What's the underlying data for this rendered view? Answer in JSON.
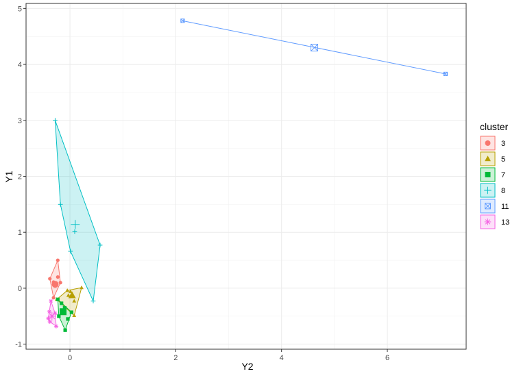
{
  "chart_data": {
    "type": "cluster",
    "x_label": "Y2",
    "y_label": "Y1",
    "xlim": [
      -0.83,
      7.49
    ],
    "ylim": [
      -1.09,
      5.09
    ],
    "xticks": [
      0,
      2,
      4,
      6
    ],
    "yticks": [
      -1,
      0,
      1,
      2,
      3,
      4,
      5
    ],
    "grid": true,
    "legend_title": "cluster",
    "legend_position": "right",
    "series": [
      {
        "name": "3",
        "color": "#F8766D",
        "shape": "circle",
        "x": [
          -0.23,
          -0.38,
          -0.31,
          -0.18,
          -0.23,
          -0.28,
          -0.31
        ],
        "y": [
          0.5,
          0.17,
          -0.17,
          0.1,
          0.2,
          0.04,
          0.11
        ],
        "centroid": {
          "x": -0.28,
          "y": 0.07
        }
      },
      {
        "name": "5",
        "color": "#B79F00",
        "shape": "triangle",
        "x": [
          -0.05,
          0.22,
          0.08,
          -0.25,
          0.01,
          0.08,
          -0.03
        ],
        "y": [
          -0.04,
          0.01,
          -0.49,
          -0.2,
          -0.06,
          -0.23,
          -0.13
        ],
        "centroid": {
          "x": 0.04,
          "y": -0.13
        }
      },
      {
        "name": "7",
        "color": "#00BA38",
        "shape": "square",
        "x": [
          -0.23,
          -0.09,
          0.03,
          -0.04,
          -0.16,
          -0.1,
          -0.21
        ],
        "y": [
          -0.2,
          -0.75,
          -0.43,
          -0.55,
          -0.27,
          -0.35,
          -0.5
        ],
        "centroid": {
          "x": -0.13,
          "y": -0.42
        }
      },
      {
        "name": "8",
        "color": "#00BFC4",
        "shape": "plus",
        "x": [
          -0.28,
          -0.18,
          0.01,
          0.09,
          0.44,
          0.57
        ],
        "y": [
          3.0,
          1.5,
          0.66,
          1.01,
          -0.23,
          0.77
        ],
        "centroid": {
          "x": 0.1,
          "y": 1.14
        }
      },
      {
        "name": "11",
        "color": "#619CFF",
        "shape": "squarex",
        "x": [
          2.13,
          7.1
        ],
        "y": [
          4.78,
          3.83
        ],
        "centroid": {
          "x": 4.62,
          "y": 4.3
        }
      },
      {
        "name": "13",
        "color": "#F564E3",
        "shape": "asterisk",
        "x": [
          -0.39,
          -0.36,
          -0.26,
          -0.41,
          -0.34,
          -0.28,
          -0.38
        ],
        "y": [
          -0.42,
          -0.23,
          -0.68,
          -0.54,
          -0.5,
          -0.45,
          -0.6
        ],
        "centroid": {
          "x": -0.34,
          "y": -0.5
        }
      }
    ]
  }
}
